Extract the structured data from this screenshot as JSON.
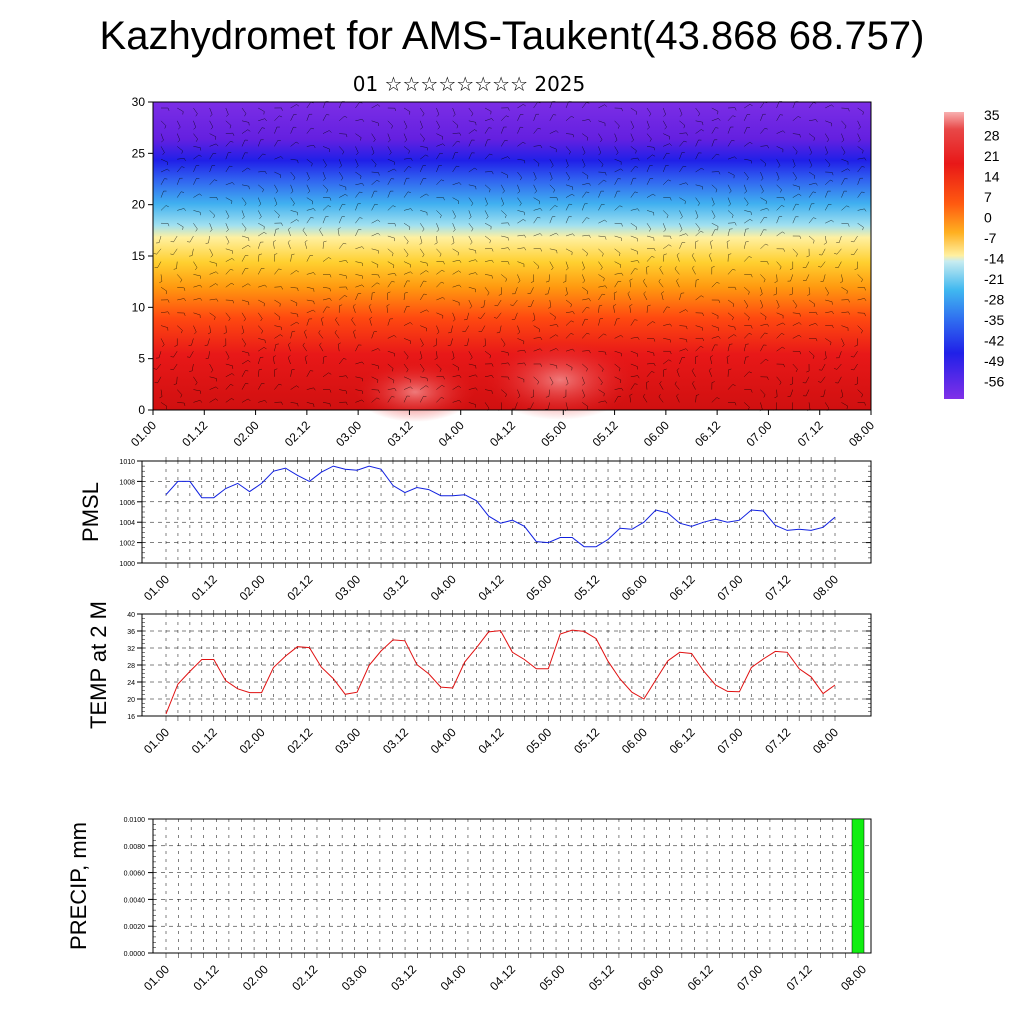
{
  "header": {
    "title": "Kazhydromet for AMS-Taukent(43.868 68.757)",
    "subtitle": "01 ☆☆☆☆☆☆☆☆ 2025"
  },
  "time_labels": [
    "01.00",
    "01.12",
    "02.00",
    "02.12",
    "03.00",
    "03.12",
    "04.00",
    "04.12",
    "05.00",
    "05.12",
    "06.00",
    "06.12",
    "07.00",
    "07.12",
    "08.00"
  ],
  "colors": {
    "pmsl_line": "#1020e0",
    "temp_line": "#e01010",
    "precip_bar": "#11ee11"
  },
  "chart_data": [
    {
      "type": "heatmap",
      "title": "",
      "ylim": [
        0,
        30
      ],
      "yticks": [
        "0",
        "5",
        "10",
        "15",
        "20",
        "25",
        "30"
      ],
      "colorbar": {
        "labels": [
          "35",
          "28",
          "21",
          "14",
          "7",
          "0",
          "-7",
          "-14",
          "-21",
          "-28",
          "-35",
          "-42",
          "-49",
          "-56"
        ],
        "range": [
          -60,
          38
        ]
      }
    },
    {
      "type": "line",
      "ylabel": "PMSL",
      "ylim": [
        1000,
        1010
      ],
      "yticks": [
        "1000",
        "1002",
        "1004",
        "1006",
        "1008",
        "1010"
      ],
      "x_step_hours": 3,
      "values": [
        1006.7,
        1008.0,
        1008.0,
        1006.4,
        1006.4,
        1007.3,
        1007.8,
        1007.0,
        1007.8,
        1009.0,
        1009.3,
        1008.6,
        1008.0,
        1008.9,
        1009.5,
        1009.2,
        1009.1,
        1009.5,
        1009.2,
        1007.6,
        1006.9,
        1007.4,
        1007.2,
        1006.6,
        1006.6,
        1006.7,
        1006.1,
        1004.6,
        1003.9,
        1004.2,
        1003.6,
        1002.1,
        1002.0,
        1002.5,
        1002.5,
        1001.6,
        1001.6,
        1002.3,
        1003.4,
        1003.3,
        1004.0,
        1005.2,
        1004.9,
        1003.9,
        1003.6,
        1004.0,
        1004.3,
        1004.0,
        1004.2,
        1005.2,
        1005.1,
        1003.7,
        1003.2,
        1003.3,
        1003.2,
        1003.5,
        1004.5
      ]
    },
    {
      "type": "line",
      "ylabel": "TEMP at 2 M",
      "ylim": [
        16,
        40
      ],
      "yticks": [
        "16",
        "20",
        "24",
        "28",
        "32",
        "36",
        "40"
      ],
      "x_step_hours": 3,
      "values": [
        16.5,
        23.5,
        26.5,
        29.3,
        29.3,
        24.3,
        22.4,
        21.5,
        21.5,
        27.4,
        30.1,
        32.3,
        32.1,
        27.5,
        24.8,
        21.1,
        21.6,
        27.9,
        31.3,
        33.9,
        33.7,
        28.1,
        25.9,
        22.8,
        22.6,
        28.7,
        32.1,
        35.8,
        36.1,
        31.0,
        29.3,
        27.1,
        27.1,
        35.3,
        36.2,
        35.9,
        34.2,
        28.9,
        24.7,
        21.6,
        20.0,
        24.5,
        29.0,
        31.0,
        30.7,
        26.6,
        23.3,
        21.8,
        21.7,
        27.4,
        29.4,
        31.2,
        31.0,
        27.1,
        25.2,
        21.3,
        23.3
      ]
    },
    {
      "type": "bar",
      "ylabel": "PRECIP, mm",
      "ylim": [
        0,
        0.01
      ],
      "yticks": [
        "0.0000",
        "0.0020",
        "0.0040",
        "0.0060",
        "0.0080",
        "0.0100"
      ],
      "x_step_hours": 3,
      "values": [
        0,
        0,
        0,
        0,
        0,
        0,
        0,
        0,
        0,
        0,
        0,
        0,
        0,
        0,
        0,
        0,
        0,
        0,
        0,
        0,
        0,
        0,
        0,
        0,
        0,
        0,
        0,
        0,
        0,
        0,
        0,
        0,
        0,
        0,
        0,
        0,
        0,
        0,
        0,
        0,
        0,
        0,
        0,
        0,
        0,
        0,
        0,
        0,
        0,
        0,
        0,
        0,
        0,
        0,
        0,
        0.01
      ]
    }
  ]
}
